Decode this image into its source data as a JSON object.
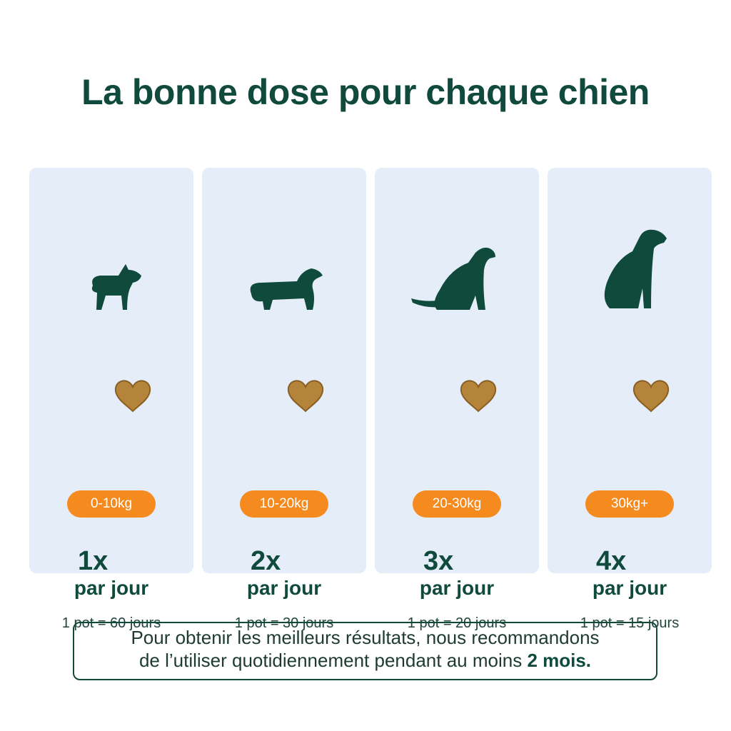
{
  "title": "La bonne dose pour chaque chien",
  "cards": [
    {
      "weight": "0-10kg",
      "dose": "1x",
      "per": "par jour",
      "duration": "1 pot = 60 jours"
    },
    {
      "weight": "10-20kg",
      "dose": "2x",
      "per": "par jour",
      "duration": "1 pot = 30 jours"
    },
    {
      "weight": "20-30kg",
      "dose": "3x",
      "per": "par jour",
      "duration": "1 pot = 20 jours"
    },
    {
      "weight": "30kg+",
      "dose": "4x",
      "per": "par jour",
      "duration": "1 pot = 15 jours"
    }
  ],
  "footer": {
    "line1": "Pour obtenir les meilleurs résultats, nous recommandons",
    "line2": "de l’utiliser quotidiennement pendant au moins",
    "emphasis": "2 mois."
  }
}
